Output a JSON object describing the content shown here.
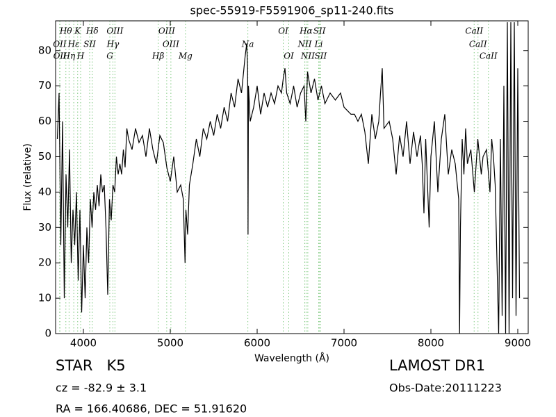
{
  "chart_data": {
    "type": "line",
    "title": "spec-55919-F5591906_sp11-240.fits",
    "x_label": "Wavelength (Å)",
    "y_label": "Flux (relative)",
    "xlim": [
      3680,
      9120
    ],
    "ylim": [
      0,
      88.4
    ],
    "xticks": [
      4000,
      5000,
      6000,
      7000,
      8000,
      9000
    ],
    "yticks": [
      0,
      10,
      20,
      30,
      40,
      50,
      60,
      70,
      80
    ],
    "color": "#000000",
    "line_color": "#7fc97f",
    "x": [
      3700,
      3720,
      3740,
      3760,
      3780,
      3800,
      3820,
      3840,
      3860,
      3880,
      3900,
      3920,
      3940,
      3960,
      3980,
      4000,
      4020,
      4040,
      4060,
      4080,
      4100,
      4120,
      4140,
      4160,
      4180,
      4200,
      4220,
      4240,
      4260,
      4280,
      4300,
      4320,
      4340,
      4360,
      4380,
      4400,
      4420,
      4440,
      4460,
      4480,
      4500,
      4520,
      4560,
      4600,
      4640,
      4680,
      4720,
      4760,
      4800,
      4840,
      4880,
      4920,
      4960,
      5000,
      5040,
      5080,
      5120,
      5150,
      5170,
      5180,
      5200,
      5220,
      5260,
      5300,
      5340,
      5380,
      5420,
      5460,
      5500,
      5540,
      5580,
      5620,
      5660,
      5700,
      5740,
      5780,
      5820,
      5860,
      5880,
      5890,
      5895,
      5900,
      5920,
      5960,
      6000,
      6040,
      6080,
      6120,
      6160,
      6200,
      6240,
      6280,
      6300,
      6320,
      6340,
      6380,
      6420,
      6460,
      6500,
      6540,
      6560,
      6580,
      6620,
      6660,
      6700,
      6740,
      6780,
      6840,
      6900,
      6960,
      7000,
      7040,
      7080,
      7120,
      7160,
      7200,
      7240,
      7280,
      7320,
      7360,
      7400,
      7420,
      7440,
      7460,
      7520,
      7560,
      7600,
      7640,
      7680,
      7720,
      7760,
      7800,
      7840,
      7880,
      7900,
      7920,
      7940,
      7980,
      8000,
      8040,
      8080,
      8120,
      8160,
      8200,
      8240,
      8280,
      8320,
      8330,
      8340,
      8360,
      8380,
      8400,
      8420,
      8460,
      8500,
      8540,
      8580,
      8600,
      8640,
      8680,
      8700,
      8720,
      8740,
      8780,
      8800,
      8820,
      8840,
      8860,
      8880,
      8900,
      8920,
      8940,
      8960,
      8980,
      9000,
      9020
    ],
    "y": [
      55,
      68,
      25,
      60,
      10,
      45,
      30,
      52,
      20,
      35,
      25,
      40,
      15,
      35,
      6,
      25,
      10,
      30,
      20,
      38,
      30,
      40,
      35,
      42,
      36,
      45,
      40,
      42,
      30,
      11,
      38,
      32,
      42,
      40,
      50,
      45,
      48,
      45,
      52,
      47,
      58,
      55,
      52,
      58,
      54,
      56,
      50,
      58,
      52,
      48,
      56,
      54,
      47,
      43,
      50,
      40,
      42,
      38,
      20,
      35,
      28,
      42,
      48,
      55,
      50,
      58,
      55,
      60,
      56,
      62,
      58,
      64,
      60,
      68,
      64,
      72,
      68,
      78,
      82,
      75,
      28,
      70,
      60,
      64,
      70,
      62,
      68,
      64,
      68,
      65,
      70,
      68,
      72,
      75,
      68,
      65,
      70,
      64,
      68,
      70,
      60,
      74,
      68,
      72,
      66,
      70,
      65,
      68,
      66,
      68,
      64,
      63,
      62,
      62,
      60,
      62,
      57,
      48,
      62,
      55,
      60,
      68,
      75,
      58,
      60,
      55,
      45,
      56,
      50,
      60,
      48,
      57,
      50,
      56,
      48,
      34,
      55,
      30,
      50,
      60,
      40,
      55,
      62,
      45,
      52,
      48,
      38,
      0,
      30,
      55,
      45,
      58,
      48,
      52,
      40,
      55,
      45,
      50,
      52,
      40,
      55,
      50,
      42,
      0,
      55,
      5,
      70,
      0,
      88,
      0,
      88,
      10,
      88,
      5,
      75,
      10
    ],
    "spectral_lines": [
      [
        {
          "label": "Hθ",
          "wavelength": 3798
        },
        {
          "label": "K",
          "wavelength": 3934
        },
        {
          "label": "Hδ",
          "wavelength": 4102
        },
        {
          "label": "OIII",
          "wavelength": 4363
        },
        {
          "label": "OIII",
          "wavelength": 4959
        },
        {
          "label": "OI",
          "wavelength": 6300
        },
        {
          "label": "Hα",
          "wavelength": 6563
        },
        {
          "label": "SII",
          "wavelength": 6717
        },
        {
          "label": "CaII",
          "wavelength": 8498
        }
      ],
      [
        {
          "label": "OII",
          "wavelength": 3727
        },
        {
          "label": "Hε",
          "wavelength": 3889
        },
        {
          "label": "SII",
          "wavelength": 4072
        },
        {
          "label": "Hγ",
          "wavelength": 4340
        },
        {
          "label": "OIII",
          "wavelength": 5007
        },
        {
          "label": "Na",
          "wavelength": 5893
        },
        {
          "label": "NII",
          "wavelength": 6548
        },
        {
          "label": "Li",
          "wavelength": 6708
        },
        {
          "label": "CaII",
          "wavelength": 8542
        }
      ],
      [
        {
          "label": "OII",
          "wavelength": 3730
        },
        {
          "label": "Hη",
          "wavelength": 3835
        },
        {
          "label": "H",
          "wavelength": 3968
        },
        {
          "label": "G",
          "wavelength": 4304
        },
        {
          "label": "Hβ",
          "wavelength": 4861
        },
        {
          "label": "Mg",
          "wavelength": 5175
        },
        {
          "label": "OI",
          "wavelength": 6364
        },
        {
          "label": "NII",
          "wavelength": 6583
        },
        {
          "label": "SII",
          "wavelength": 6731
        },
        {
          "label": "CaII",
          "wavelength": 8662
        }
      ]
    ],
    "object_class": "STAR   K5",
    "redshift_text": "cz = -82.9 ± 3.1",
    "coordinates": "RA = 166.40686, DEC = 51.91620",
    "survey": "LAMOST DR1",
    "obs_date": "Obs-Date:20111223"
  }
}
